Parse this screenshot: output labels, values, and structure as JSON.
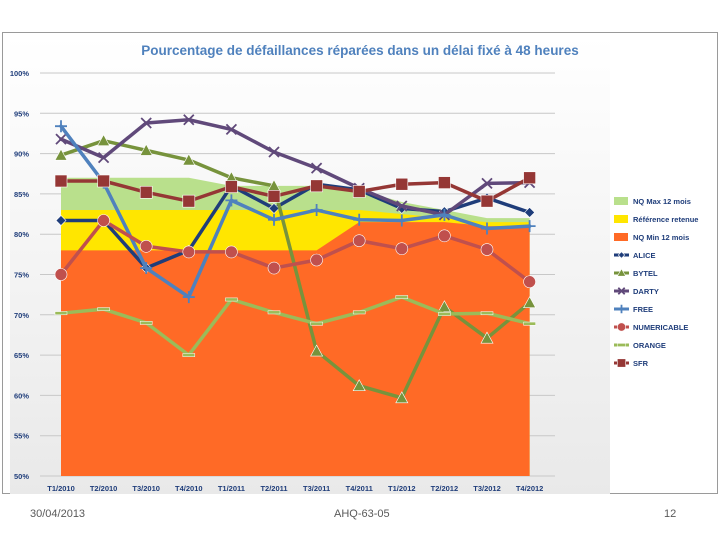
{
  "footer": {
    "date": "30/04/2013",
    "reference": "AHQ-63-05",
    "page_number": "12"
  },
  "chart_data": {
    "type": "line",
    "title": "Pourcentage de défaillances réparées dans un délai fixé à 48 heures",
    "categories": [
      "T1/2010",
      "T2/2010",
      "T3/2010",
      "T4/2010",
      "T1/2011",
      "T2/2011",
      "T3/2011",
      "T4/2011",
      "T1/2012",
      "T2/2012",
      "T3/2012",
      "T4/2012"
    ],
    "ylim": [
      50,
      100
    ],
    "yticks": [
      50,
      55,
      60,
      65,
      70,
      75,
      80,
      85,
      90,
      95,
      100
    ],
    "ytick_labels": [
      "50%",
      "55%",
      "60%",
      "65%",
      "70%",
      "75%",
      "80%",
      "85%",
      "90%",
      "95%",
      "100%"
    ],
    "grid": true,
    "legend_position": "right",
    "areas": [
      {
        "name": "NQ Max 12 mois",
        "color": "#b9e08c",
        "values": [
          87,
          87,
          87,
          87,
          86,
          86,
          86,
          85.5,
          84,
          83,
          82,
          82
        ]
      },
      {
        "name": "Référence retenue",
        "color": "#ffe600",
        "values": [
          83,
          83,
          83,
          83,
          83,
          83,
          83,
          83,
          82.5,
          82,
          81.5,
          81.5
        ]
      },
      {
        "name": "NQ Min 12 mois",
        "color": "#ff6a26",
        "values": [
          78,
          78,
          78,
          78,
          78,
          78,
          78,
          81.5,
          81.5,
          81.5,
          81,
          81
        ]
      }
    ],
    "series": [
      {
        "name": "ALICE",
        "color": "#1f3d7a",
        "marker": "diamond",
        "values": [
          81.7,
          81.7,
          75.8,
          78,
          86,
          83.2,
          86.2,
          85.5,
          83.2,
          82.8,
          84.5,
          82.7
        ]
      },
      {
        "name": "BYTEL",
        "color": "#77933c",
        "marker": "triangle",
        "values": [
          89.8,
          91.6,
          90.4,
          89.2,
          87,
          86,
          65.5,
          61.2,
          59.7,
          71,
          67.1,
          71.5
        ]
      },
      {
        "name": "DARTY",
        "color": "#60497a",
        "marker": "x",
        "values": [
          91.8,
          89.5,
          93.8,
          94.2,
          93,
          90.2,
          88.2,
          85.7,
          83.5,
          82.4,
          86.3,
          86.4
        ]
      },
      {
        "name": "FREE",
        "color": "#4f81bd",
        "marker": "plus",
        "values": [
          93.4,
          86.4,
          75.8,
          72.2,
          84.2,
          81.8,
          83,
          81.8,
          81.7,
          82.4,
          80.7,
          81
        ]
      },
      {
        "name": "NUMERICABLE",
        "color": "#c0504d",
        "marker": "circle",
        "values": [
          75,
          81.7,
          78.5,
          77.8,
          77.8,
          75.8,
          76.8,
          79.2,
          78.2,
          79.8,
          78.1,
          74.1
        ]
      },
      {
        "name": "ORANGE",
        "color": "#9bbb59",
        "marker": "dash",
        "values": [
          70.2,
          70.7,
          69,
          65,
          71.9,
          70.3,
          68.9,
          70.3,
          72.2,
          70.1,
          70.2,
          68.9
        ]
      },
      {
        "name": "SFR",
        "color": "#953735",
        "marker": "square",
        "values": [
          86.6,
          86.6,
          85.2,
          84.1,
          85.9,
          84.7,
          86,
          85.3,
          86.2,
          86.4,
          84.1,
          87
        ]
      }
    ]
  }
}
